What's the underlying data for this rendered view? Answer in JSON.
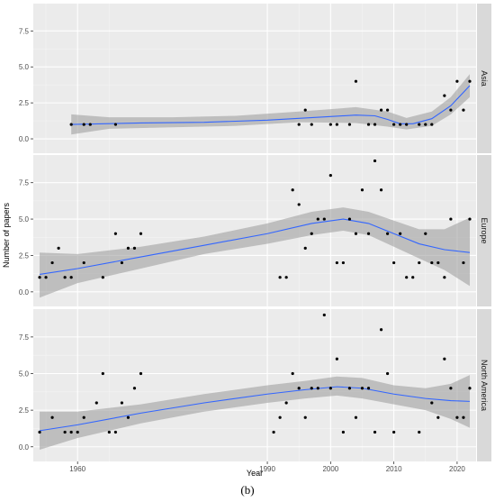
{
  "chart_data": {
    "type": "scatter",
    "xlabel": "Year",
    "ylabel": "Number of papers",
    "caption": "(b)",
    "xlim": [
      1953,
      2023
    ],
    "x_ticks": [
      1960,
      1990,
      2000,
      2010,
      2020
    ],
    "x_tick_labels": [
      "1960",
      "1990",
      "2000",
      "2010",
      "2020"
    ],
    "ylim": [
      -1,
      9.4
    ],
    "y_ticks": [
      0.0,
      2.5,
      5.0,
      7.5
    ],
    "y_tick_labels": [
      "0.0",
      "2.5",
      "5.0",
      "7.5"
    ],
    "grid": true,
    "smooth_color": "#3366ff",
    "band_color": "#999999",
    "panel_bg": "#ebebeb",
    "strip_bg": "#d9d9d9",
    "panels": [
      {
        "label": "Asia",
        "points": [
          [
            1959,
            1
          ],
          [
            1961,
            1
          ],
          [
            1962,
            1
          ],
          [
            1966,
            1
          ],
          [
            1995,
            1
          ],
          [
            1996,
            2
          ],
          [
            1997,
            1
          ],
          [
            2000,
            1
          ],
          [
            2001,
            1
          ],
          [
            2003,
            1
          ],
          [
            2004,
            4
          ],
          [
            2006,
            1
          ],
          [
            2007,
            1
          ],
          [
            2008,
            2
          ],
          [
            2009,
            2
          ],
          [
            2010,
            1
          ],
          [
            2011,
            1
          ],
          [
            2012,
            1
          ],
          [
            2014,
            1
          ],
          [
            2015,
            1
          ],
          [
            2016,
            1
          ],
          [
            2018,
            3
          ],
          [
            2019,
            2
          ],
          [
            2020,
            4
          ],
          [
            2021,
            2
          ],
          [
            2022,
            4
          ]
        ],
        "smooth": [
          [
            1959,
            1.0
          ],
          [
            1970,
            1.1
          ],
          [
            1980,
            1.15
          ],
          [
            1990,
            1.3
          ],
          [
            2000,
            1.55
          ],
          [
            2004,
            1.65
          ],
          [
            2007,
            1.6
          ],
          [
            2009,
            1.35
          ],
          [
            2011,
            1.05
          ],
          [
            2013,
            1.05
          ],
          [
            2016,
            1.4
          ],
          [
            2019,
            2.3
          ],
          [
            2022,
            3.7
          ]
        ],
        "band_upper": [
          [
            1959,
            1.7
          ],
          [
            1965,
            1.5
          ],
          [
            1975,
            1.5
          ],
          [
            1985,
            1.6
          ],
          [
            1995,
            1.9
          ],
          [
            2004,
            2.2
          ],
          [
            2009,
            1.9
          ],
          [
            2012,
            1.45
          ],
          [
            2016,
            1.9
          ],
          [
            2019,
            2.9
          ],
          [
            2022,
            4.5
          ]
        ],
        "band_lower": [
          [
            1959,
            0.3
          ],
          [
            1965,
            0.7
          ],
          [
            1975,
            0.8
          ],
          [
            1985,
            0.9
          ],
          [
            1995,
            1.15
          ],
          [
            2004,
            1.1
          ],
          [
            2009,
            0.85
          ],
          [
            2012,
            0.65
          ],
          [
            2016,
            0.9
          ],
          [
            2019,
            1.7
          ],
          [
            2022,
            2.9
          ]
        ]
      },
      {
        "label": "Europe",
        "points": [
          [
            1954,
            1
          ],
          [
            1955,
            1
          ],
          [
            1956,
            2
          ],
          [
            1957,
            3
          ],
          [
            1958,
            1
          ],
          [
            1959,
            1
          ],
          [
            1961,
            2
          ],
          [
            1964,
            1
          ],
          [
            1966,
            4
          ],
          [
            1967,
            2
          ],
          [
            1968,
            3
          ],
          [
            1969,
            3
          ],
          [
            1970,
            4
          ],
          [
            1992,
            1
          ],
          [
            1993,
            1
          ],
          [
            1994,
            7
          ],
          [
            1995,
            6
          ],
          [
            1996,
            3
          ],
          [
            1997,
            4
          ],
          [
            1998,
            5
          ],
          [
            1999,
            5
          ],
          [
            2000,
            8
          ],
          [
            2001,
            2
          ],
          [
            2002,
            2
          ],
          [
            2003,
            5
          ],
          [
            2004,
            4
          ],
          [
            2005,
            7
          ],
          [
            2006,
            4
          ],
          [
            2007,
            9
          ],
          [
            2008,
            7
          ],
          [
            2009,
            4
          ],
          [
            2010,
            2
          ],
          [
            2011,
            4
          ],
          [
            2012,
            1
          ],
          [
            2013,
            1
          ],
          [
            2014,
            2
          ],
          [
            2015,
            4
          ],
          [
            2016,
            2
          ],
          [
            2017,
            2
          ],
          [
            2018,
            1
          ],
          [
            2019,
            5
          ],
          [
            2021,
            2
          ],
          [
            2022,
            5
          ]
        ],
        "smooth": [
          [
            1954,
            1.2
          ],
          [
            1960,
            1.6
          ],
          [
            1970,
            2.4
          ],
          [
            1980,
            3.2
          ],
          [
            1990,
            4.0
          ],
          [
            1997,
            4.7
          ],
          [
            2002,
            5.0
          ],
          [
            2006,
            4.7
          ],
          [
            2010,
            4.0
          ],
          [
            2014,
            3.3
          ],
          [
            2018,
            2.9
          ],
          [
            2022,
            2.7
          ]
        ],
        "band_upper": [
          [
            1954,
            2.7
          ],
          [
            1960,
            2.6
          ],
          [
            1970,
            3.1
          ],
          [
            1980,
            3.8
          ],
          [
            1990,
            4.7
          ],
          [
            1997,
            5.5
          ],
          [
            2002,
            5.8
          ],
          [
            2006,
            5.5
          ],
          [
            2010,
            4.9
          ],
          [
            2014,
            4.3
          ],
          [
            2018,
            4.3
          ],
          [
            2022,
            5.1
          ]
        ],
        "band_lower": [
          [
            1954,
            -0.4
          ],
          [
            1960,
            0.6
          ],
          [
            1970,
            1.6
          ],
          [
            1980,
            2.6
          ],
          [
            1990,
            3.3
          ],
          [
            1997,
            3.9
          ],
          [
            2002,
            4.2
          ],
          [
            2006,
            3.9
          ],
          [
            2010,
            3.1
          ],
          [
            2014,
            2.3
          ],
          [
            2018,
            1.5
          ],
          [
            2022,
            0.4
          ]
        ]
      },
      {
        "label": "North America",
        "points": [
          [
            1954,
            1
          ],
          [
            1956,
            2
          ],
          [
            1958,
            1
          ],
          [
            1959,
            1
          ],
          [
            1960,
            1
          ],
          [
            1961,
            2
          ],
          [
            1963,
            3
          ],
          [
            1964,
            5
          ],
          [
            1965,
            1
          ],
          [
            1966,
            1
          ],
          [
            1967,
            3
          ],
          [
            1968,
            2
          ],
          [
            1969,
            4
          ],
          [
            1970,
            5
          ],
          [
            1991,
            1
          ],
          [
            1992,
            2
          ],
          [
            1993,
            3
          ],
          [
            1994,
            5
          ],
          [
            1995,
            4
          ],
          [
            1996,
            2
          ],
          [
            1997,
            4
          ],
          [
            1998,
            4
          ],
          [
            1999,
            9
          ],
          [
            2000,
            4
          ],
          [
            2001,
            6
          ],
          [
            2002,
            1
          ],
          [
            2003,
            4
          ],
          [
            2004,
            2
          ],
          [
            2005,
            4
          ],
          [
            2006,
            4
          ],
          [
            2007,
            1
          ],
          [
            2008,
            8
          ],
          [
            2009,
            5
          ],
          [
            2010,
            1
          ],
          [
            2014,
            1
          ],
          [
            2016,
            3
          ],
          [
            2017,
            2
          ],
          [
            2018,
            6
          ],
          [
            2019,
            4
          ],
          [
            2020,
            2
          ],
          [
            2021,
            2
          ],
          [
            2022,
            4
          ]
        ],
        "smooth": [
          [
            1954,
            1.1
          ],
          [
            1960,
            1.5
          ],
          [
            1970,
            2.3
          ],
          [
            1980,
            3.0
          ],
          [
            1990,
            3.6
          ],
          [
            1996,
            3.9
          ],
          [
            2001,
            4.1
          ],
          [
            2005,
            4.0
          ],
          [
            2010,
            3.6
          ],
          [
            2015,
            3.3
          ],
          [
            2019,
            3.15
          ],
          [
            2022,
            3.1
          ]
        ],
        "band_upper": [
          [
            1954,
            2.4
          ],
          [
            1960,
            2.4
          ],
          [
            1970,
            2.9
          ],
          [
            1980,
            3.6
          ],
          [
            1990,
            4.2
          ],
          [
            1996,
            4.5
          ],
          [
            2001,
            4.8
          ],
          [
            2005,
            4.7
          ],
          [
            2010,
            4.2
          ],
          [
            2015,
            4.0
          ],
          [
            2019,
            4.3
          ],
          [
            2022,
            4.9
          ]
        ],
        "band_lower": [
          [
            1954,
            -0.2
          ],
          [
            1960,
            0.6
          ],
          [
            1970,
            1.6
          ],
          [
            1980,
            2.4
          ],
          [
            1990,
            3.0
          ],
          [
            1996,
            3.3
          ],
          [
            2001,
            3.5
          ],
          [
            2005,
            3.3
          ],
          [
            2010,
            2.9
          ],
          [
            2015,
            2.5
          ],
          [
            2019,
            1.9
          ],
          [
            2022,
            1.3
          ]
        ]
      }
    ]
  }
}
